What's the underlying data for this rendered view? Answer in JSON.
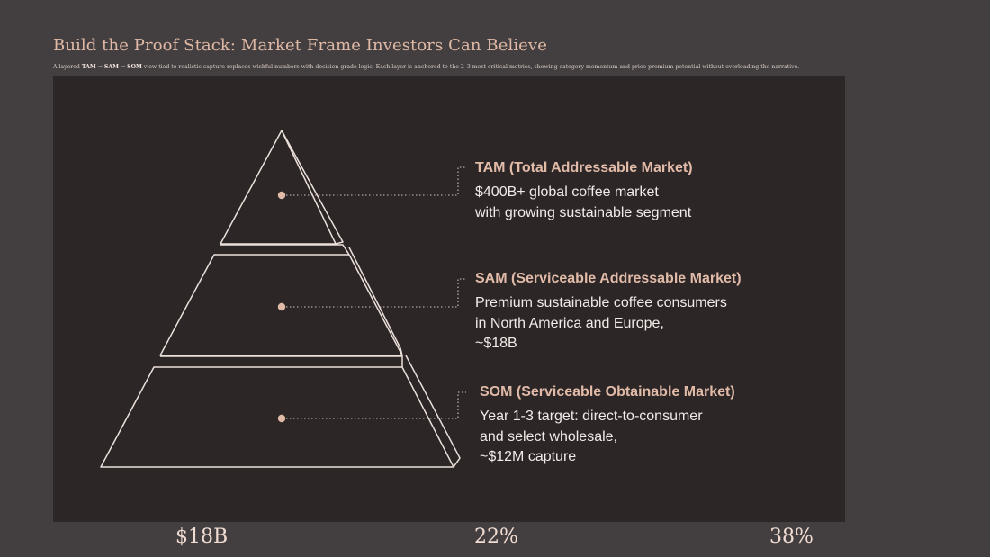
{
  "header": {
    "title": "Build the Proof Stack: Market Frame Investors Can Believe",
    "subtitle": {
      "prefix": "A layered ",
      "tam": "TAM",
      "arrow1": " → ",
      "sam": "SAM",
      "arrow2": " → ",
      "som": "SOM",
      "suffix": " view tied to realistic capture replaces wishful numbers with decision-grade logic. Each layer is anchored to the 2–3 most critical metrics, showing category momentum and price-premium potential without overloading the narrative."
    }
  },
  "pyramid": {
    "layers": [
      {
        "label": "TAM (Total Addressable Market)",
        "description": "$400B+ global coffee market\nwith growing sustainable segment"
      },
      {
        "label": "SAM (Serviceable Addressable Market)",
        "description": "Premium sustainable coffee consumers\nin North America and Europe,\n~$18B"
      },
      {
        "label": "SOM (Serviceable Obtainable Market)",
        "description": "Year 1-3 target: direct-to-consumer\nand select wholesale,\n~$12M capture"
      }
    ]
  },
  "stats": [
    "$18B",
    "22%",
    "38%"
  ],
  "colors": {
    "background": "#433e3f",
    "panel": "#2c2627",
    "accent": "#e2bba8",
    "outline": "#ece0da"
  }
}
